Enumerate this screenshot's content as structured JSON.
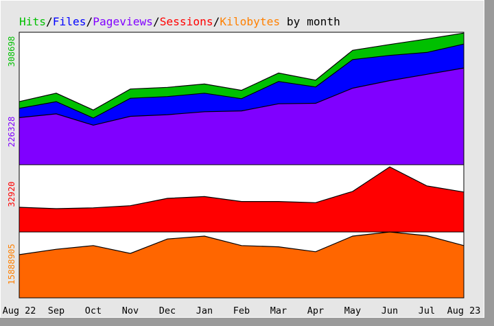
{
  "chart_data": {
    "type": "area",
    "title_parts": [
      {
        "text": "Hits",
        "color": "#00c000"
      },
      {
        "text": "/",
        "color": "#000000"
      },
      {
        "text": "Files",
        "color": "#0000ff"
      },
      {
        "text": "/",
        "color": "#000000"
      },
      {
        "text": "Pageviews",
        "color": "#8000ff"
      },
      {
        "text": "/",
        "color": "#000000"
      },
      {
        "text": "Sessions",
        "color": "#ff0000"
      },
      {
        "text": "/",
        "color": "#000000"
      },
      {
        "text": "Kilobytes",
        "color": "#ff8000"
      },
      {
        "text": " by month",
        "color": "#000000"
      }
    ],
    "categories": [
      "Aug 22",
      "Sep",
      "Oct",
      "Nov",
      "Dec",
      "Jan",
      "Feb",
      "Mar",
      "Apr",
      "May",
      "Jun",
      "Jul",
      "Aug 23"
    ],
    "panels": [
      {
        "name": "hits-files-pageviews",
        "axis_labels": [
          {
            "text": "308698",
            "color": "#00c000"
          },
          {
            "text": "226328",
            "color": "#8000ff"
          }
        ],
        "ylim": [
          0,
          315000
        ],
        "series": [
          {
            "name": "Hits",
            "color": "#00c000",
            "values": [
              150000,
              170000,
              130000,
              180000,
              184000,
              192000,
              177000,
              218000,
              201000,
              272000,
              286000,
              299000,
              313000
            ]
          },
          {
            "name": "Files",
            "color": "#0000ff",
            "values": [
              134000,
              150000,
              111000,
              158000,
              162000,
              170000,
              157000,
              198000,
              185000,
              250000,
              260000,
              267000,
              287000
            ]
          },
          {
            "name": "Pageviews",
            "color": "#8000ff",
            "values": [
              112000,
              121000,
              94000,
              115000,
              119000,
              126000,
              128000,
              145000,
              146000,
              182000,
              200000,
              215000,
              230000
            ]
          }
        ]
      },
      {
        "name": "sessions",
        "axis_labels": [
          {
            "text": "32920",
            "color": "#ff0000"
          }
        ],
        "ylim": [
          0,
          34000
        ],
        "series": [
          {
            "name": "Sessions",
            "color": "#ff0000",
            "values": [
              12500,
              11800,
              12200,
              13300,
              17000,
              17900,
              15400,
              15400,
              14800,
              20500,
              32900,
              23300,
              20200
            ]
          }
        ]
      },
      {
        "name": "kilobytes",
        "axis_labels": [
          {
            "text": "15888905",
            "color": "#ff8000"
          }
        ],
        "ylim": [
          0,
          16000000
        ],
        "series": [
          {
            "name": "Kilobytes",
            "color": "#ff6600",
            "values": [
              10500000,
              11800000,
              12700000,
              10800000,
              14300000,
              15000000,
              12700000,
              12400000,
              11200000,
              15000000,
              16000000,
              15100000,
              12700000
            ]
          }
        ]
      }
    ]
  }
}
